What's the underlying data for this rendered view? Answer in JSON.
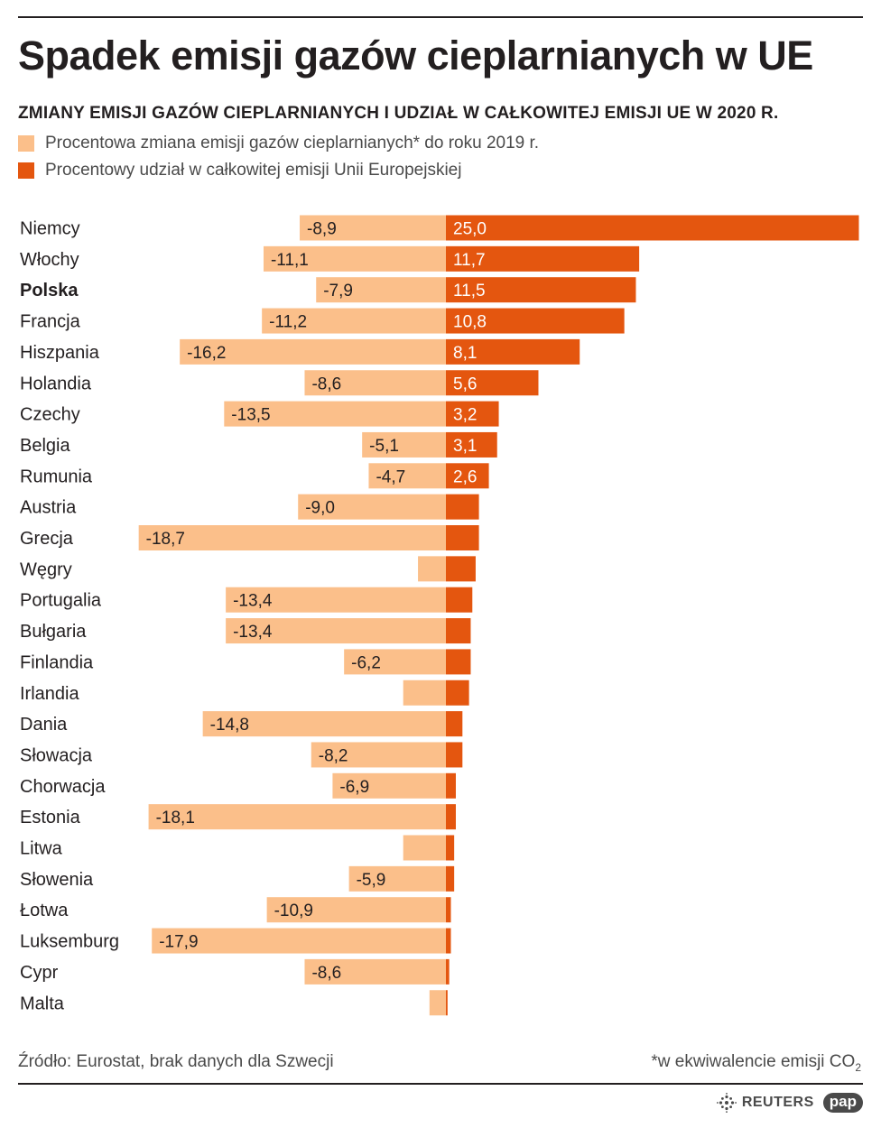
{
  "title": "Spadek emisji gazów cieplarnianych w UE",
  "subtitle": "ZMIANY EMISJI GAZÓW CIEPLARNIANYCH I UDZIAŁ W CAŁKOWITEJ EMISJI UE W 2020 R.",
  "legend": [
    {
      "label": "Procentowa zmiana emisji gazów cieplarnianych* do roku 2019 r.",
      "color": "#fbbf8a"
    },
    {
      "label": "Procentowy udział w całkowitej emisji Unii Europejskiej",
      "color": "#e4560f"
    }
  ],
  "footer": {
    "source": "Źródło: Eurostat, brak danych dla Szwecji",
    "note": "*w ekwiwalencie emisji CO",
    "note_sub": "2",
    "brand_reuters": "REUTERS",
    "brand_pap": "pap"
  },
  "chart_data": {
    "type": "bar",
    "orientation": "horizontal",
    "highlight_category": "Polska",
    "categories": [
      "Niemcy",
      "Włochy",
      "Polska",
      "Francja",
      "Hiszpania",
      "Holandia",
      "Czechy",
      "Belgia",
      "Rumunia",
      "Austria",
      "Grecja",
      "Węgry",
      "Portugalia",
      "Bułgaria",
      "Finlandia",
      "Irlandia",
      "Dania",
      "Słowacja",
      "Chorwacja",
      "Estonia",
      "Litwa",
      "Słowenia",
      "Łotwa",
      "Luksemburg",
      "Cypr",
      "Malta"
    ],
    "series": [
      {
        "name": "Procentowa zmiana emisji gazów cieplarnianych* do roku 2019 r.",
        "color": "#fbbf8a",
        "values": [
          -8.9,
          -11.1,
          -7.9,
          -11.2,
          -16.2,
          -8.6,
          -13.5,
          -5.1,
          -4.7,
          -9.0,
          -18.7,
          -1.7,
          -13.4,
          -13.4,
          -6.2,
          -2.6,
          -14.8,
          -8.2,
          -6.9,
          -18.1,
          -2.6,
          -5.9,
          -10.9,
          -17.9,
          -8.6,
          -1.0
        ],
        "labels": [
          "-8,9",
          "-11,1",
          "-7,9",
          "-11,2",
          "-16,2",
          "-8,6",
          "-13,5",
          "-5,1",
          "-4,7",
          "-9,0",
          "-18,7",
          "",
          "-13,4",
          "-13,4",
          "-6,2",
          "",
          "-14,8",
          "-8,2",
          "-6,9",
          "-18,1",
          "",
          "-5,9",
          "-10,9",
          "-17,9",
          "-8,6",
          ""
        ]
      },
      {
        "name": "Procentowy udział w całkowitej emisji Unii Europejskiej",
        "color": "#e4560f",
        "values": [
          25.0,
          11.7,
          11.5,
          10.8,
          8.1,
          5.6,
          3.2,
          3.1,
          2.6,
          2.0,
          2.0,
          1.8,
          1.6,
          1.5,
          1.5,
          1.4,
          1.0,
          1.0,
          0.6,
          0.6,
          0.5,
          0.5,
          0.3,
          0.3,
          0.2,
          0.1
        ],
        "labels": [
          "25,0",
          "11,7",
          "11,5",
          "10,8",
          "8,1",
          "5,6",
          "3,2",
          "3,1",
          "2,6",
          "",
          "",
          "",
          "",
          "",
          "",
          "",
          "",
          "",
          "",
          "",
          "",
          "",
          "",
          "",
          "",
          ""
        ]
      }
    ]
  }
}
